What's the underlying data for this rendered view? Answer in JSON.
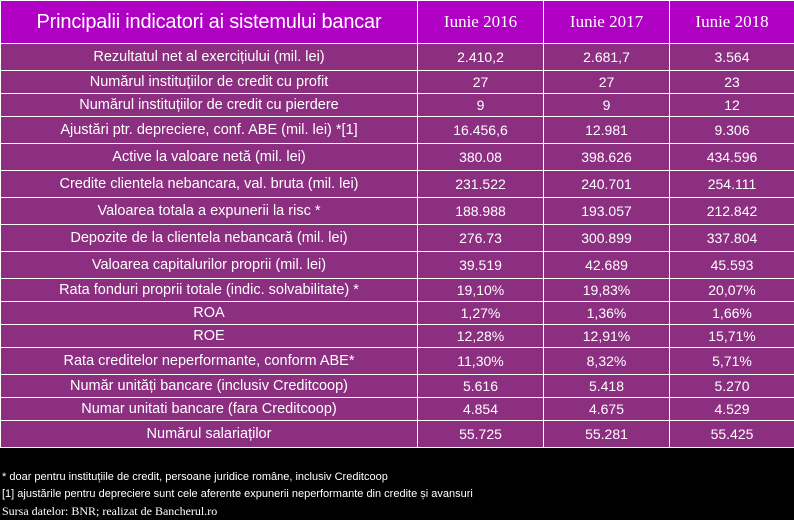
{
  "header": {
    "title": "Principalii indicatori ai sistemului bancar",
    "columns": [
      "Iunie 2016",
      "Iunie 2017",
      "Iunie 2018"
    ]
  },
  "rows": [
    {
      "label": "Rezultatul net al exercițiului (mil. lei)",
      "values": [
        "2.410,2",
        "2.681,7",
        "3.564"
      ]
    },
    {
      "label": "Numărul instituțiilor de credit cu profit",
      "values": [
        "27",
        "27",
        "23"
      ]
    },
    {
      "label": "Numărul instituțiilor de credit cu pierdere",
      "values": [
        "9",
        "9",
        "12"
      ]
    },
    {
      "label": "Ajustări ptr. depreciere, conf. ABE (mil. lei) *[1]",
      "values": [
        "16.456,6",
        "12.981",
        "9.306"
      ]
    },
    {
      "label": "Active la valoare netă (mil. lei)",
      "values": [
        "380.08",
        "398.626",
        "434.596"
      ]
    },
    {
      "label": "Credite clientela nebancara, val. bruta (mil. lei)",
      "values": [
        "231.522",
        "240.701",
        "254.111"
      ]
    },
    {
      "label": "Valoarea totala a expunerii la risc *",
      "values": [
        "188.988",
        "193.057",
        "212.842"
      ]
    },
    {
      "label": "Depozite de la clientela nebancară (mil. lei)",
      "values": [
        "276.73",
        "300.899",
        "337.804"
      ]
    },
    {
      "label": "Valoarea capitalurilor proprii  (mil. lei)",
      "values": [
        "39.519",
        "42.689",
        "45.593"
      ]
    },
    {
      "label": "Rata fonduri proprii totale (indic. solvabilitate) *",
      "values": [
        "19,10%",
        "19,83%",
        "20,07%"
      ]
    },
    {
      "label": "ROA",
      "values": [
        "1,27%",
        "1,36%",
        "1,66%"
      ]
    },
    {
      "label": "ROE",
      "values": [
        "12,28%",
        "12,91%",
        "15,71%"
      ]
    },
    {
      "label": "Rata creditelor neperformante, conform ABE*",
      "values": [
        "11,30%",
        "8,32%",
        "5,71%"
      ]
    },
    {
      "label": "Număr unități bancare (inclusiv Creditcoop)",
      "values": [
        "5.616",
        "5.418",
        "5.270"
      ]
    },
    {
      "label": "Numar unitati bancare (fara Creditcoop)",
      "values": [
        "4.854",
        "4.675",
        "4.529"
      ]
    },
    {
      "label": "Numărul salariaților",
      "values": [
        "55.725",
        "55.281",
        "55.425"
      ]
    }
  ],
  "notes": {
    "asterisk": "* doar pentru instituțiile de credit, persoane juridice române, inclusiv Creditcoop",
    "footnote_1": "[1]  ajustările pentru depreciere sunt cele aferente expunerii neperformante din credite și avansuri",
    "source": "Sursa datelor: BNR; realizat de Bancherul.ro"
  },
  "colors": {
    "header_bg": "#b000c3",
    "body_bg": "#8c2f80",
    "border": "#ffffff",
    "page_bg": "#000000"
  }
}
